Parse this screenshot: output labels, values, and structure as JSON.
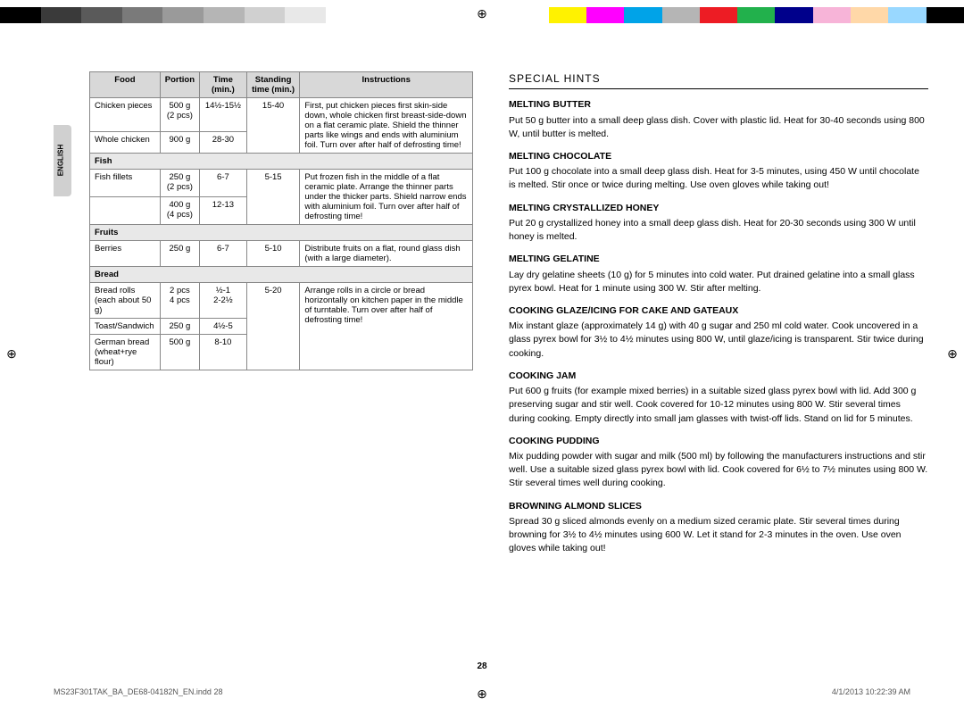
{
  "colorbar": {
    "left": [
      "#000000",
      "#3a3a3a",
      "#5a5a5a",
      "#7a7a7a",
      "#9a9a9a",
      "#b5b5b5",
      "#d0d0d0",
      "#e8e8e8",
      "#ffffff"
    ],
    "right": [
      "#ffffff",
      "#fff200",
      "#ff00ff",
      "#00a3e8",
      "#b5b5b5",
      "#ed1c24",
      "#22b14c",
      "#00008b",
      "#f7b4d8",
      "#ffd8a8",
      "#99d8ff",
      "#000000"
    ]
  },
  "lang_label": "ENGLISH",
  "table": {
    "headers": [
      "Food",
      "Portion",
      "Time (min.)",
      "Standing time (min.)",
      "Instructions"
    ],
    "rows": [
      {
        "type": "data",
        "food": "Chicken pieces",
        "portion": "500 g\n(2 pcs)",
        "time": "14½-15½",
        "stand": "15-40",
        "instr": "First, put chicken pieces first skin-side down, whole chicken first breast-side-down on a flat ceramic plate. Shield the thinner parts like wings and ends with aluminium foil. Turn over after half of defrosting time!",
        "rowspan": 2
      },
      {
        "type": "sub",
        "food": "Whole chicken",
        "portion": "900 g",
        "time": "28-30"
      },
      {
        "type": "section",
        "label": "Fish"
      },
      {
        "type": "data",
        "food": "Fish fillets",
        "portion": "250 g\n(2 pcs)",
        "time": "6-7",
        "stand": "5-15",
        "instr": "Put frozen fish in the middle of a flat ceramic plate. Arrange the thinner parts under the thicker parts. Shield narrow ends with aluminium foil. Turn over after half of defrosting time!",
        "rowspan": 2
      },
      {
        "type": "sub",
        "food": "",
        "portion": "400 g\n(4 pcs)",
        "time": "12-13"
      },
      {
        "type": "section",
        "label": "Fruits"
      },
      {
        "type": "data",
        "food": "Berries",
        "portion": "250 g",
        "time": "6-7",
        "stand": "5-10",
        "instr": "Distribute fruits on a flat, round glass dish (with a large diameter).",
        "rowspan": 1
      },
      {
        "type": "section",
        "label": "Bread"
      },
      {
        "type": "data",
        "food": "Bread rolls\n(each about 50 g)",
        "portion": "2 pcs\n4 pcs",
        "time": "½-1\n2-2½",
        "stand": "5-20",
        "instr": "Arrange rolls in a circle or bread horizontally on kitchen paper in the middle of turntable. Turn over after half of defrosting time!",
        "rowspan": 3
      },
      {
        "type": "sub",
        "food": "Toast/Sandwich",
        "portion": "250 g",
        "time": "4½-5"
      },
      {
        "type": "sub",
        "food": "German bread\n(wheat+rye flour)",
        "portion": "500 g",
        "time": "8-10"
      }
    ]
  },
  "special_hints_title": "SPECIAL HINTS",
  "hints": [
    {
      "head": "MELTING BUTTER",
      "body": "Put 50 g butter into a small deep glass dish. Cover with plastic lid. Heat for 30-40 seconds using 800 W, until butter is melted."
    },
    {
      "head": "MELTING CHOCOLATE",
      "body": "Put 100 g chocolate into a small deep glass dish. Heat for 3-5 minutes, using 450 W until chocolate is melted. Stir once or twice during melting. Use oven gloves while taking out!"
    },
    {
      "head": "MELTING CRYSTALLIZED HONEY",
      "body": "Put 20 g crystallized honey into a small deep glass dish. Heat for 20-30 seconds using 300 W until honey is melted."
    },
    {
      "head": "MELTING GELATINE",
      "body": "Lay dry gelatine sheets (10 g) for 5 minutes into cold water. Put drained gelatine into a small glass pyrex bowl. Heat for 1 minute using 300 W. Stir after melting."
    },
    {
      "head": "COOKING GLAZE/ICING FOR CAKE AND GATEAUX",
      "body": "Mix instant glaze (approximately 14 g) with 40 g sugar and 250 ml cold water. Cook uncovered in a glass pyrex bowl for 3½ to 4½ minutes using 800 W, until glaze/icing is transparent. Stir twice during cooking."
    },
    {
      "head": "COOKING JAM",
      "body": "Put 600 g fruits (for example mixed berries) in a suitable sized glass pyrex bowl with lid. Add 300 g preserving sugar and stir well. Cook covered for 10-12 minutes using 800 W. Stir several times during cooking. Empty directly into small jam glasses with twist-off lids. Stand on lid for 5 minutes."
    },
    {
      "head": "COOKING PUDDING",
      "body": "Mix pudding powder with sugar and milk (500 ml) by following the manufacturers instructions and stir well. Use a suitable sized glass pyrex bowl with lid. Cook covered for 6½ to 7½ minutes using 800 W. Stir several times well during cooking."
    },
    {
      "head": "BROWNING ALMOND SLICES",
      "body": "Spread 30 g sliced almonds evenly on a medium sized ceramic plate. Stir several times during browning for 3½ to 4½ minutes using 600 W. Let it stand for 2-3 minutes in the oven. Use oven gloves while taking out!"
    }
  ],
  "page_number": "28",
  "footer": {
    "file": "MS23F301TAK_BA_DE68-04182N_EN.indd   28",
    "date": "4/1/2013   10:22:39 AM"
  }
}
